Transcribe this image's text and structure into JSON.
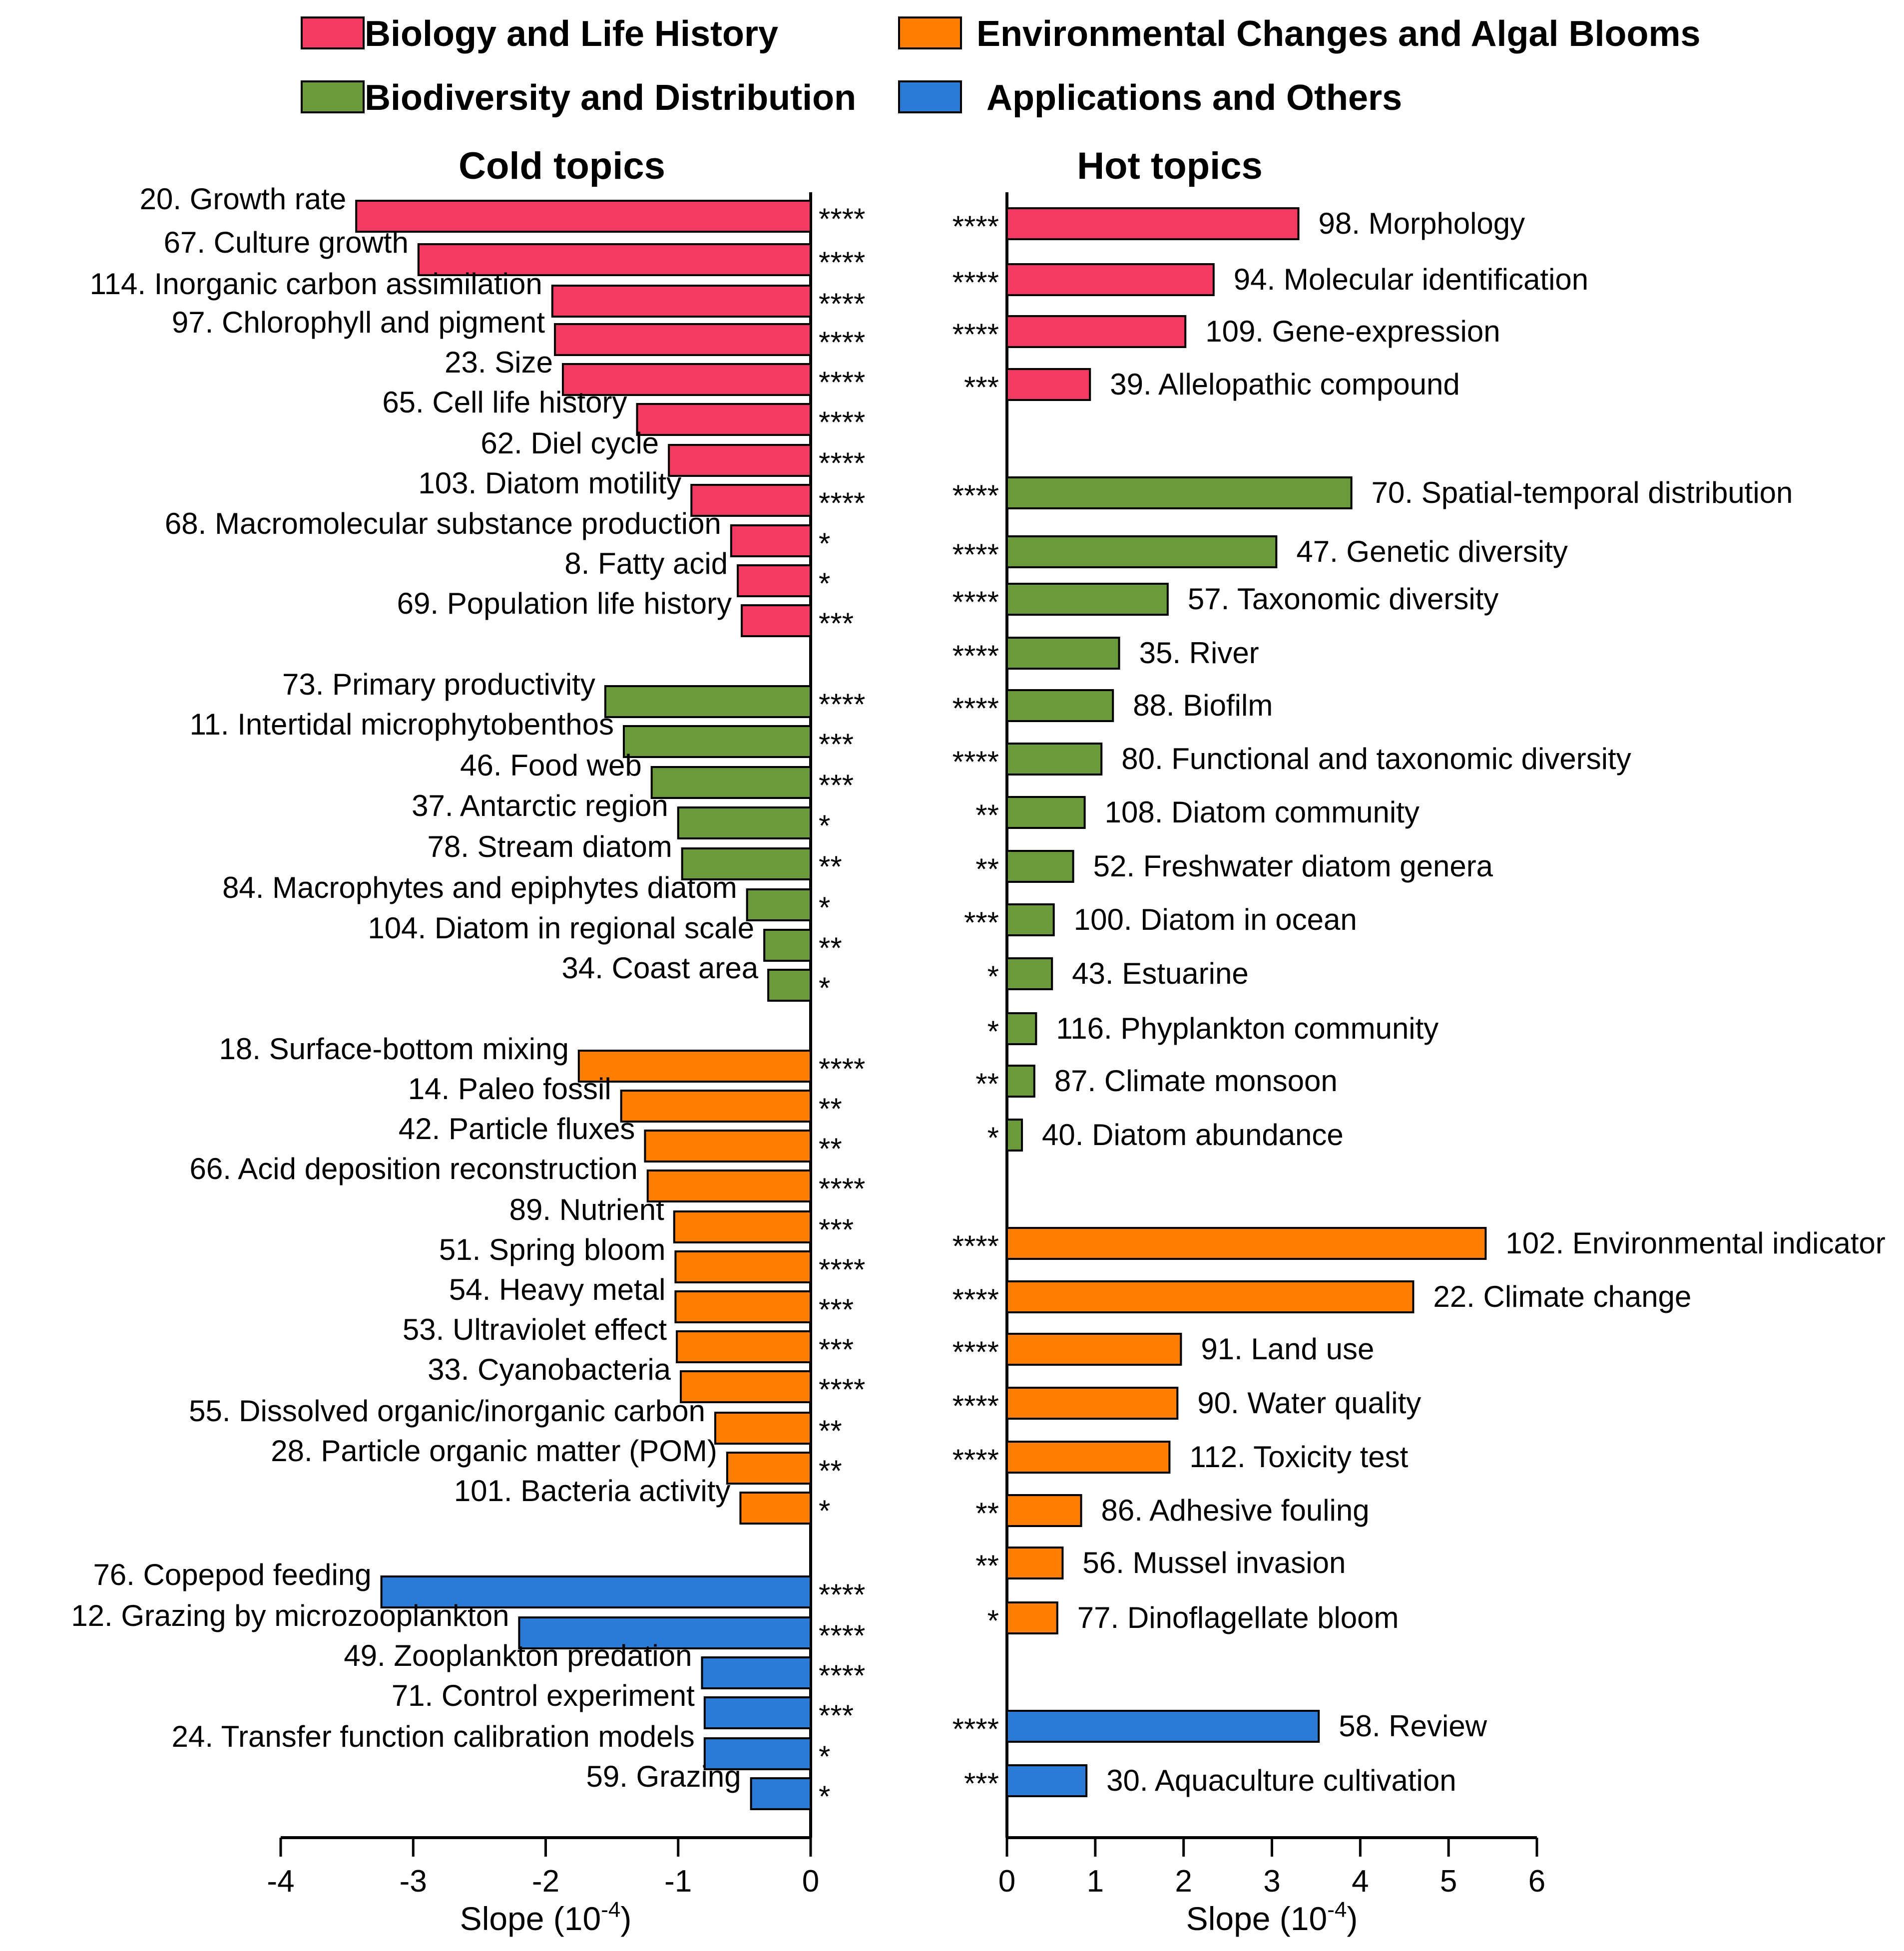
{
  "colors": {
    "Biology and Life History": "#f23a63",
    "Biodiversity and Distribution": "#6a9a3c",
    "Environmental Changes and Algal Blooms": "#ff7d00",
    "Applications and Others": "#2b7bd6"
  },
  "legend": [
    {
      "label": "Biology and Life History",
      "group": "Biology and Life History"
    },
    {
      "label": "Environmental Changes and Algal Blooms",
      "group": "Environmental Changes and Algal Blooms"
    },
    {
      "label": "Biodiversity and Distribution",
      "group": "Biodiversity and Distribution"
    },
    {
      "label": "Applications and Others",
      "group": "Applications and Others"
    }
  ],
  "chart_data": [
    {
      "type": "bar",
      "orientation": "horizontal",
      "title": "Cold topics",
      "xlabel": "Slope (10",
      "xlabel_sup": "-4",
      "xlabel_close": ")",
      "xlim": [
        -4,
        0
      ],
      "xticks": [
        "-4",
        "-3",
        "-2",
        "-1",
        "0"
      ],
      "bars": [
        {
          "label": "20. Growth rate",
          "value": -3.43,
          "sig": "****",
          "group": "Biology and Life History"
        },
        {
          "label": "67. Culture growth",
          "value": -2.96,
          "sig": "****",
          "group": "Biology and Life History"
        },
        {
          "label": "114. Inorganic carbon assimilation",
          "value": -1.95,
          "sig": "****",
          "group": "Biology and Life History"
        },
        {
          "label": "97. Chlorophyll and pigment",
          "value": -1.93,
          "sig": "****",
          "group": "Biology and Life History"
        },
        {
          "label": "23. Size",
          "value": -1.87,
          "sig": "****",
          "group": "Biology and Life History"
        },
        {
          "label": "65. Cell life history",
          "value": -1.31,
          "sig": "****",
          "group": "Biology and Life History"
        },
        {
          "label": "62. Diel cycle",
          "value": -1.07,
          "sig": "****",
          "group": "Biology and Life History"
        },
        {
          "label": "103. Diatom motility",
          "value": -0.9,
          "sig": "****",
          "group": "Biology and Life History"
        },
        {
          "label": "68. Macromolecular substance production",
          "value": -0.6,
          "sig": "*",
          "group": "Biology and Life History"
        },
        {
          "label": "8. Fatty acid",
          "value": -0.55,
          "sig": "*",
          "group": "Biology and Life History"
        },
        {
          "label": "69. Population life history",
          "value": -0.52,
          "sig": "***",
          "group": "Biology and Life History"
        },
        {
          "label": "73. Primary productivity",
          "value": -1.55,
          "sig": "****",
          "group": "Biodiversity and Distribution"
        },
        {
          "label": "11. Intertidal microphytobenthos",
          "value": -1.41,
          "sig": "***",
          "group": "Biodiversity and Distribution"
        },
        {
          "label": "46. Food web",
          "value": -1.2,
          "sig": "***",
          "group": "Biodiversity and Distribution"
        },
        {
          "label": "37. Antarctic region",
          "value": -1.0,
          "sig": "*",
          "group": "Biodiversity and Distribution"
        },
        {
          "label": "78. Stream diatom",
          "value": -0.97,
          "sig": "**",
          "group": "Biodiversity and Distribution"
        },
        {
          "label": "84. Macrophytes and epiphytes diatom",
          "value": -0.48,
          "sig": "*",
          "group": "Biodiversity and Distribution"
        },
        {
          "label": "104. Diatom in regional scale",
          "value": -0.35,
          "sig": "**",
          "group": "Biodiversity and Distribution"
        },
        {
          "label": "34. Coast area",
          "value": -0.32,
          "sig": "*",
          "group": "Biodiversity and Distribution"
        },
        {
          "label": "18. Surface-bottom mixing",
          "value": -1.75,
          "sig": "****",
          "group": "Environmental Changes and Algal Blooms"
        },
        {
          "label": "14. Paleo fossil",
          "value": -1.43,
          "sig": "**",
          "group": "Environmental Changes and Algal Blooms"
        },
        {
          "label": "42. Particle fluxes",
          "value": -1.25,
          "sig": "**",
          "group": "Environmental Changes and Algal Blooms"
        },
        {
          "label": "66. Acid deposition reconstruction",
          "value": -1.23,
          "sig": "****",
          "group": "Environmental Changes and Algal Blooms"
        },
        {
          "label": "89. Nutrient",
          "value": -1.03,
          "sig": "***",
          "group": "Environmental Changes and Algal Blooms"
        },
        {
          "label": "51. Spring bloom",
          "value": -1.02,
          "sig": "****",
          "group": "Environmental Changes and Algal Blooms"
        },
        {
          "label": "54. Heavy metal",
          "value": -1.02,
          "sig": "***",
          "group": "Environmental Changes and Algal Blooms"
        },
        {
          "label": "53. Ultraviolet effect",
          "value": -1.01,
          "sig": "***",
          "group": "Environmental Changes and Algal Blooms"
        },
        {
          "label": "33. Cyanobacteria",
          "value": -0.98,
          "sig": "****",
          "group": "Environmental Changes and Algal Blooms"
        },
        {
          "label": "55. Dissolved organic/inorganic carbon",
          "value": -0.72,
          "sig": "**",
          "group": "Environmental Changes and Algal Blooms"
        },
        {
          "label": "28. Particle organic matter (POM)",
          "value": -0.63,
          "sig": "**",
          "group": "Environmental Changes and Algal Blooms"
        },
        {
          "label": "101. Bacteria activity",
          "value": -0.53,
          "sig": "*",
          "group": "Environmental Changes and Algal Blooms"
        },
        {
          "label": "76. Copepod feeding",
          "value": -3.24,
          "sig": "****",
          "group": "Applications and Others"
        },
        {
          "label": "12. Grazing by microzooplankton",
          "value": -2.2,
          "sig": "****",
          "group": "Applications and Others"
        },
        {
          "label": "49. Zooplankton predation",
          "value": -0.82,
          "sig": "****",
          "group": "Applications and Others"
        },
        {
          "label": "71. Control experiment",
          "value": -0.8,
          "sig": "***",
          "group": "Applications and Others"
        },
        {
          "label": "24. Transfer function calibration models",
          "value": -0.8,
          "sig": "*",
          "group": "Applications and Others"
        },
        {
          "label": "59. Grazing",
          "value": -0.45,
          "sig": "*",
          "group": "Applications and Others"
        }
      ]
    },
    {
      "type": "bar",
      "orientation": "horizontal",
      "title": "Hot topics",
      "xlabel": "Slope (10",
      "xlabel_sup": "-4",
      "xlabel_close": ")",
      "xlim": [
        0,
        6
      ],
      "xticks": [
        "0",
        "1",
        "2",
        "3",
        "4",
        "5",
        "6"
      ],
      "bars": [
        {
          "label": "98. Morphology",
          "value": 3.3,
          "sig": "****",
          "group": "Biology and Life History"
        },
        {
          "label": "94. Molecular identification",
          "value": 2.34,
          "sig": "****",
          "group": "Biology and Life History"
        },
        {
          "label": "109. Gene-expression",
          "value": 2.02,
          "sig": "****",
          "group": "Biology and Life History"
        },
        {
          "label": "39. Allelopathic compound",
          "value": 0.94,
          "sig": "***",
          "group": "Biology and Life History"
        },
        {
          "label": "70. Spatial-temporal distribution",
          "value": 3.9,
          "sig": "****",
          "group": "Biodiversity and Distribution"
        },
        {
          "label": "47. Genetic diversity",
          "value": 3.05,
          "sig": "****",
          "group": "Biodiversity and Distribution"
        },
        {
          "label": "57. Taxonomic diversity",
          "value": 1.82,
          "sig": "****",
          "group": "Biodiversity and Distribution"
        },
        {
          "label": "35. River",
          "value": 1.27,
          "sig": "****",
          "group": "Biodiversity and Distribution"
        },
        {
          "label": "88. Biofilm",
          "value": 1.2,
          "sig": "****",
          "group": "Biodiversity and Distribution"
        },
        {
          "label": "80. Functional and taxonomic diversity",
          "value": 1.07,
          "sig": "****",
          "group": "Biodiversity and Distribution"
        },
        {
          "label": "108. Diatom community",
          "value": 0.88,
          "sig": "**",
          "group": "Biodiversity and Distribution"
        },
        {
          "label": "52. Freshwater diatom genera",
          "value": 0.75,
          "sig": "**",
          "group": "Biodiversity and Distribution"
        },
        {
          "label": "100. Diatom in ocean",
          "value": 0.53,
          "sig": "***",
          "group": "Biodiversity and Distribution"
        },
        {
          "label": "43. Estuarine",
          "value": 0.51,
          "sig": "*",
          "group": "Biodiversity and Distribution"
        },
        {
          "label": "116. Phyplankton community",
          "value": 0.33,
          "sig": "*",
          "group": "Biodiversity and Distribution"
        },
        {
          "label": "87. Climate monsoon",
          "value": 0.31,
          "sig": "**",
          "group": "Biodiversity and Distribution"
        },
        {
          "label": "40. Diatom abundance",
          "value": 0.17,
          "sig": "*",
          "group": "Biodiversity and Distribution"
        },
        {
          "label": "102. Environmental indicator",
          "value": 5.42,
          "sig": "****",
          "group": "Environmental Changes and Algal Blooms"
        },
        {
          "label": "22. Climate change",
          "value": 4.6,
          "sig": "****",
          "group": "Environmental Changes and Algal Blooms"
        },
        {
          "label": "91. Land use",
          "value": 1.97,
          "sig": "****",
          "group": "Environmental Changes and Algal Blooms"
        },
        {
          "label": "90. Water quality",
          "value": 1.93,
          "sig": "****",
          "group": "Environmental Changes and Algal Blooms"
        },
        {
          "label": "112. Toxicity test",
          "value": 1.84,
          "sig": "****",
          "group": "Environmental Changes and Algal Blooms"
        },
        {
          "label": "86. Adhesive fouling",
          "value": 0.84,
          "sig": "**",
          "group": "Environmental Changes and Algal Blooms"
        },
        {
          "label": "56. Mussel invasion",
          "value": 0.63,
          "sig": "**",
          "group": "Environmental Changes and Algal Blooms"
        },
        {
          "label": "77. Dinoflagellate bloom",
          "value": 0.57,
          "sig": "*",
          "group": "Environmental Changes and Algal Blooms"
        },
        {
          "label": "58. Review",
          "value": 3.53,
          "sig": "****",
          "group": "Applications and Others"
        },
        {
          "label": "30. Aquaculture cultivation",
          "value": 0.9,
          "sig": "***",
          "group": "Applications and Others"
        }
      ]
    }
  ]
}
